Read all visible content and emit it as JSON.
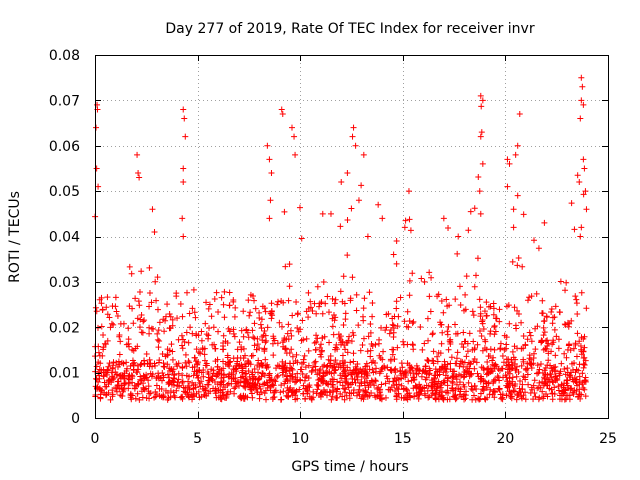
{
  "chart_data": {
    "type": "scatter",
    "title": "Day 277 of 2019, Rate Of TEC Index for receiver invr",
    "xlabel": "GPS time / hours",
    "ylabel": "ROTI / TECUs",
    "xlim": [
      0,
      25
    ],
    "ylim": [
      0,
      0.08
    ],
    "x_ticks": [
      0,
      5,
      10,
      15,
      20,
      25
    ],
    "x_tick_labels": [
      "0",
      "5",
      "10",
      "15",
      "20",
      "25"
    ],
    "y_ticks": [
      0,
      0.01,
      0.02,
      0.03,
      0.04,
      0.05,
      0.06,
      0.07,
      0.08
    ],
    "y_tick_labels": [
      "0",
      "0.01",
      "0.02",
      "0.03",
      "0.04",
      "0.05",
      "0.06",
      "0.07",
      "0.08"
    ],
    "grid": true,
    "marker": "+",
    "color": "#ff0000",
    "series": [
      {
        "name": "ROTI",
        "x_range": [
          0,
          23.95
        ],
        "baseline_range": [
          0.004,
          0.012
        ],
        "envelope": [
          {
            "x": 0.0,
            "max": 0.045
          },
          {
            "x": 0.1,
            "max": 0.069
          },
          {
            "x": 0.5,
            "max": 0.032
          },
          {
            "x": 1.0,
            "max": 0.025
          },
          {
            "x": 1.5,
            "max": 0.03
          },
          {
            "x": 2.1,
            "max": 0.058
          },
          {
            "x": 2.8,
            "max": 0.046
          },
          {
            "x": 3.5,
            "max": 0.028
          },
          {
            "x": 4.3,
            "max": 0.068
          },
          {
            "x": 5.0,
            "max": 0.03
          },
          {
            "x": 6.0,
            "max": 0.028
          },
          {
            "x": 7.0,
            "max": 0.03
          },
          {
            "x": 8.0,
            "max": 0.028
          },
          {
            "x": 8.6,
            "max": 0.06
          },
          {
            "x": 9.1,
            "max": 0.068
          },
          {
            "x": 9.6,
            "max": 0.062
          },
          {
            "x": 10.5,
            "max": 0.035
          },
          {
            "x": 11.3,
            "max": 0.045
          },
          {
            "x": 12.0,
            "max": 0.055
          },
          {
            "x": 12.6,
            "max": 0.064
          },
          {
            "x": 13.3,
            "max": 0.04
          },
          {
            "x": 14.0,
            "max": 0.042
          },
          {
            "x": 14.8,
            "max": 0.038
          },
          {
            "x": 15.3,
            "max": 0.05
          },
          {
            "x": 16.0,
            "max": 0.03
          },
          {
            "x": 17.0,
            "max": 0.044
          },
          {
            "x": 18.0,
            "max": 0.04
          },
          {
            "x": 18.8,
            "max": 0.071
          },
          {
            "x": 19.5,
            "max": 0.045
          },
          {
            "x": 20.2,
            "max": 0.058
          },
          {
            "x": 20.7,
            "max": 0.067
          },
          {
            "x": 21.5,
            "max": 0.04
          },
          {
            "x": 22.0,
            "max": 0.043
          },
          {
            "x": 23.0,
            "max": 0.035
          },
          {
            "x": 23.7,
            "max": 0.074
          },
          {
            "x": 23.95,
            "max": 0.04
          }
        ],
        "points": [
          [
            0.05,
            0.064
          ],
          [
            0.1,
            0.069
          ],
          [
            0.12,
            0.068
          ],
          [
            0.08,
            0.055
          ],
          [
            0.15,
            0.051
          ],
          [
            2.05,
            0.058
          ],
          [
            2.1,
            0.054
          ],
          [
            2.15,
            0.053
          ],
          [
            2.8,
            0.046
          ],
          [
            2.9,
            0.041
          ],
          [
            4.3,
            0.068
          ],
          [
            4.35,
            0.066
          ],
          [
            4.4,
            0.062
          ],
          [
            4.3,
            0.055
          ],
          [
            4.3,
            0.052
          ],
          [
            4.25,
            0.044
          ],
          [
            4.3,
            0.04
          ],
          [
            8.4,
            0.06
          ],
          [
            8.5,
            0.057
          ],
          [
            8.6,
            0.054
          ],
          [
            8.55,
            0.048
          ],
          [
            8.5,
            0.044
          ],
          [
            9.1,
            0.068
          ],
          [
            9.15,
            0.067
          ],
          [
            9.6,
            0.064
          ],
          [
            9.7,
            0.062
          ],
          [
            9.75,
            0.058
          ],
          [
            11.1,
            0.045
          ],
          [
            11.5,
            0.045
          ],
          [
            12.0,
            0.052
          ],
          [
            12.3,
            0.054
          ],
          [
            12.55,
            0.062
          ],
          [
            12.6,
            0.064
          ],
          [
            12.7,
            0.06
          ],
          [
            13.1,
            0.058
          ],
          [
            13.3,
            0.04
          ],
          [
            13.8,
            0.047
          ],
          [
            14.0,
            0.044
          ],
          [
            14.7,
            0.039
          ],
          [
            15.3,
            0.05
          ],
          [
            15.1,
            0.042
          ],
          [
            17.0,
            0.044
          ],
          [
            17.7,
            0.04
          ],
          [
            18.8,
            0.071
          ],
          [
            18.9,
            0.07
          ],
          [
            18.85,
            0.063
          ],
          [
            18.8,
            0.062
          ],
          [
            18.9,
            0.056
          ],
          [
            18.75,
            0.05
          ],
          [
            18.8,
            0.045
          ],
          [
            20.1,
            0.057
          ],
          [
            20.2,
            0.056
          ],
          [
            20.1,
            0.051
          ],
          [
            20.7,
            0.067
          ],
          [
            20.6,
            0.06
          ],
          [
            20.5,
            0.058
          ],
          [
            20.6,
            0.049
          ],
          [
            20.4,
            0.046
          ],
          [
            20.4,
            0.042
          ],
          [
            21.9,
            0.043
          ],
          [
            23.7,
            0.075
          ],
          [
            23.75,
            0.073
          ],
          [
            23.7,
            0.07
          ],
          [
            23.8,
            0.069
          ],
          [
            23.65,
            0.066
          ],
          [
            23.8,
            0.057
          ],
          [
            23.85,
            0.055
          ],
          [
            23.6,
            0.052
          ],
          [
            23.9,
            0.05
          ],
          [
            23.95,
            0.046
          ],
          [
            23.7,
            0.042
          ],
          [
            23.65,
            0.04
          ]
        ]
      }
    ]
  }
}
